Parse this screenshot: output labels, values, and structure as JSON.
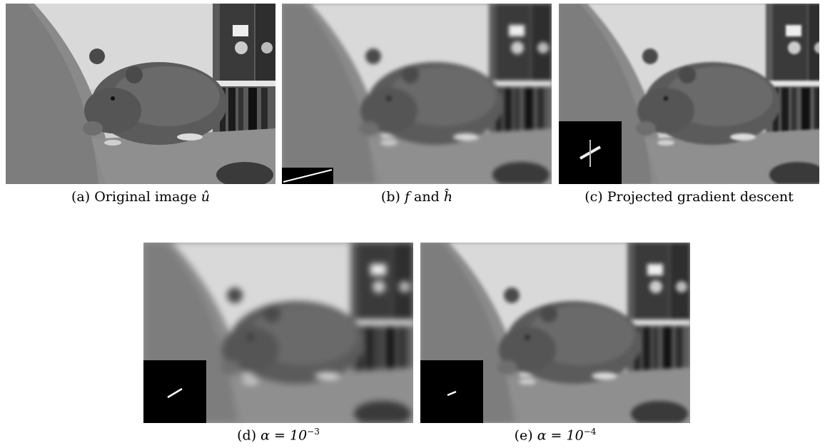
{
  "figure": {
    "panels": [
      {
        "id": "a",
        "caption_prefix": "(a) Original image ",
        "caption_math": "û"
      },
      {
        "id": "b",
        "caption_prefix": "(b) ",
        "caption_math_1": "f",
        "caption_mid": " and ",
        "caption_math_2": "ĥ"
      },
      {
        "id": "c",
        "caption_prefix": "(c) Projected gradient descent"
      },
      {
        "id": "d",
        "caption_prefix": "(d) ",
        "caption_math": "α = 10",
        "caption_exp": "−3"
      },
      {
        "id": "e",
        "caption_prefix": "(e) ",
        "caption_math": "α = 10",
        "caption_exp": "−4"
      }
    ]
  }
}
